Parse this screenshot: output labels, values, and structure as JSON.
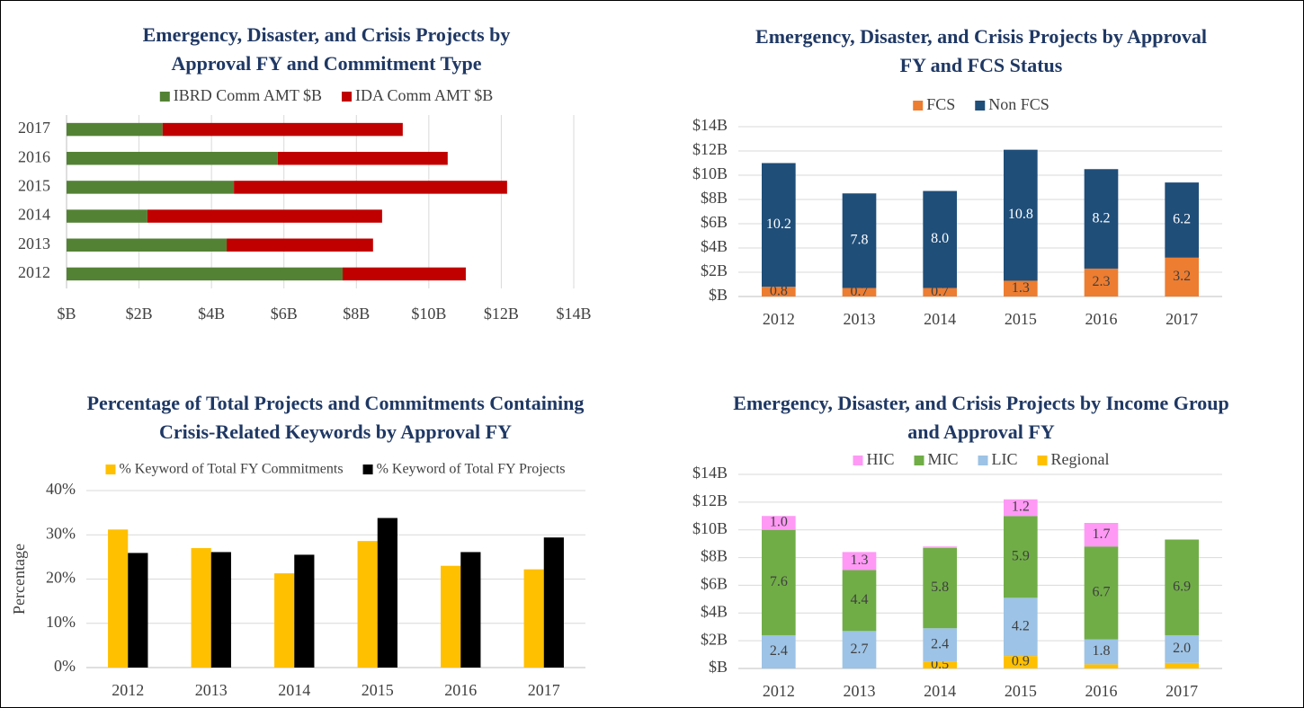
{
  "chart_data": [
    {
      "type": "bar",
      "orientation": "horizontal",
      "stacked": true,
      "title": "Emergency, Disaster, and Crisis Projects by Approval FY and Commitment Type",
      "categories": [
        "2012",
        "2013",
        "2014",
        "2015",
        "2016",
        "2017"
      ],
      "series": [
        {
          "name": "IBRD Comm AMT $B",
          "color": "#548235",
          "values": [
            7.62,
            4.42,
            2.23,
            4.62,
            5.83,
            2.65
          ]
        },
        {
          "name": "IDA Comm AMT $B",
          "color": "#c00000",
          "values": [
            3.4,
            4.04,
            6.48,
            7.54,
            4.69,
            6.63
          ]
        }
      ],
      "xlim": [
        0,
        14
      ],
      "xticks": [
        {
          "value": 0,
          "label": "$B"
        },
        {
          "value": 2,
          "label": "$2B"
        },
        {
          "value": 4,
          "label": "$4B"
        },
        {
          "value": 6,
          "label": "$6B"
        },
        {
          "value": 8,
          "label": "$8B"
        },
        {
          "value": 10,
          "label": "$10B"
        },
        {
          "value": 12,
          "label": "$12B"
        },
        {
          "value": 14,
          "label": "$14B"
        }
      ],
      "grid": true,
      "legend": "top"
    },
    {
      "type": "bar",
      "stacked": true,
      "title": "Emergency, Disaster, and Crisis Projects by Approval FY and FCS Status",
      "categories": [
        "2012",
        "2013",
        "2014",
        "2015",
        "2016",
        "2017"
      ],
      "series": [
        {
          "name": "FCS",
          "color": "#ed7d31",
          "label_color": "#404040",
          "values": [
            0.8,
            0.7,
            0.7,
            1.3,
            2.3,
            3.2
          ],
          "value_labels": [
            "0.8",
            "0.7",
            "0.7",
            "1.3",
            "2.3",
            "3.2"
          ]
        },
        {
          "name": "Non FCS",
          "color": "#1f4e79",
          "label_color": "#ffffff",
          "values": [
            10.2,
            7.8,
            8.0,
            10.8,
            8.2,
            6.2
          ],
          "value_labels": [
            "10.2",
            "7.8",
            "8.0",
            "10.8",
            "8.2",
            "6.2"
          ]
        }
      ],
      "ylim": [
        0,
        14
      ],
      "yticks": [
        {
          "value": 0,
          "label": "$B"
        },
        {
          "value": 2,
          "label": "$2B"
        },
        {
          "value": 4,
          "label": "$4B"
        },
        {
          "value": 6,
          "label": "$6B"
        },
        {
          "value": 8,
          "label": "$8B"
        },
        {
          "value": 10,
          "label": "$10B"
        },
        {
          "value": 12,
          "label": "$12B"
        },
        {
          "value": 14,
          "label": "$14B"
        }
      ],
      "grid": true,
      "legend": "top"
    },
    {
      "type": "bar",
      "stacked": false,
      "title": "Percentage of Total Projects and Commitments Containing Crisis-Related Keywords by Approval FY",
      "y_label": "Percentage",
      "categories": [
        "2012",
        "2013",
        "2014",
        "2015",
        "2016",
        "2017"
      ],
      "series": [
        {
          "name": "% Keyword of Total FY Commitments",
          "color": "#ffc000",
          "values": [
            31.2,
            27.0,
            21.3,
            28.6,
            23.0,
            22.2
          ]
        },
        {
          "name": "% Keyword of Total FY Projects",
          "color": "#000000",
          "values": [
            25.9,
            26.1,
            25.5,
            33.8,
            26.1,
            29.4
          ]
        }
      ],
      "ylim": [
        0,
        40
      ],
      "yticks": [
        {
          "value": 0,
          "label": "0%"
        },
        {
          "value": 10,
          "label": "10%"
        },
        {
          "value": 20,
          "label": "20%"
        },
        {
          "value": 30,
          "label": "30%"
        },
        {
          "value": 40,
          "label": "40%"
        }
      ],
      "grid": true,
      "legend": "top"
    },
    {
      "type": "bar",
      "stacked": true,
      "legend_order": "reversed",
      "title": "Emergency, Disaster, and Crisis Projects by Income Group and Approval FY",
      "categories": [
        "2012",
        "2013",
        "2014",
        "2015",
        "2016",
        "2017"
      ],
      "series": [
        {
          "name": "Regional",
          "color": "#ffc000",
          "label_color": "#404040",
          "values": [
            0,
            0,
            0.5,
            0.9,
            0.3,
            0.4
          ],
          "value_labels": [
            null,
            null,
            "0.5",
            "0.9",
            null,
            null
          ]
        },
        {
          "name": "LIC",
          "color": "#9dc3e6",
          "label_color": "#404040",
          "values": [
            2.4,
            2.7,
            2.4,
            4.2,
            1.8,
            2.0
          ],
          "value_labels": [
            "2.4",
            "2.7",
            "2.4",
            "4.2",
            "1.8",
            "2.0"
          ]
        },
        {
          "name": "MIC",
          "color": "#70ad47",
          "label_color": "#404040",
          "values": [
            7.6,
            4.4,
            5.8,
            5.9,
            6.7,
            6.9
          ],
          "value_labels": [
            "7.6",
            "4.4",
            "5.8",
            "5.9",
            "6.7",
            "6.9"
          ]
        },
        {
          "name": "HIC",
          "color": "#ff99f5",
          "label_color": "#404040",
          "values": [
            1.0,
            1.3,
            0.1,
            1.2,
            1.7,
            0
          ],
          "value_labels": [
            "1.0",
            "1.3",
            null,
            "1.2",
            "1.7",
            null
          ]
        }
      ],
      "ylim": [
        0,
        14
      ],
      "yticks": [
        {
          "value": 0,
          "label": "$B"
        },
        {
          "value": 2,
          "label": "$2B"
        },
        {
          "value": 4,
          "label": "$4B"
        },
        {
          "value": 6,
          "label": "$6B"
        },
        {
          "value": 8,
          "label": "$8B"
        },
        {
          "value": 10,
          "label": "$10B"
        },
        {
          "value": 12,
          "label": "$12B"
        },
        {
          "value": 14,
          "label": "$14B"
        }
      ],
      "grid": true,
      "legend": "top"
    }
  ]
}
